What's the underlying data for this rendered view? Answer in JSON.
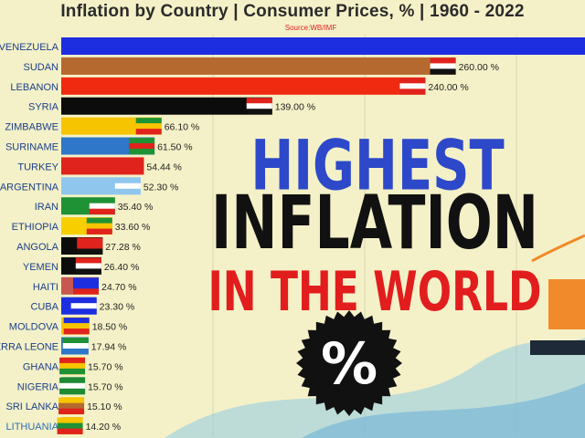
{
  "title": "Inflation by Country | Consumer Prices, % | 1960 - 2022",
  "source": "Source:WB/IMF",
  "overlay": {
    "line1": "HIGHEST",
    "line2": "INFLATION",
    "line3": "IN THE WORLD",
    "badge": "%"
  },
  "colors": {
    "background": "#f4f1c8",
    "highest": "#2d49c9",
    "world": "#e21d1d"
  },
  "chart_data": {
    "type": "bar",
    "orientation": "horizontal",
    "title": "Inflation by Country | Consumer Prices, % | 1960 - 2022",
    "xlabel": "",
    "ylabel": "",
    "grid": true,
    "categories": [
      "VENEZUELA",
      "SUDAN",
      "LEBANON",
      "SYRIA",
      "ZIMBABWE",
      "SURINAME",
      "TURKEY",
      "ARGENTINA",
      "IRAN",
      "ETHIOPIA",
      "ANGOLA",
      "YEMEN",
      "HAITI",
      "CUBA",
      "MOLDOVA",
      "SIERRA LEONE",
      "GHANA",
      "NIGERIA",
      "SRI LANKA",
      "LITHUANIA"
    ],
    "values": [
      386.2,
      260.0,
      240.0,
      139.0,
      66.1,
      61.5,
      54.44,
      52.3,
      35.4,
      33.6,
      27.28,
      26.4,
      24.7,
      23.3,
      18.5,
      17.94,
      15.7,
      15.7,
      15.1,
      14.2
    ],
    "value_labels": [
      "",
      "260.00 %",
      "240.00 %",
      "139.00 %",
      "66.10 %",
      "61.50 %",
      "54.44 %",
      "52.30 %",
      "35.40 %",
      "33.60 %",
      "27.28 %",
      "26.40 %",
      "24.70 %",
      "23.30 %",
      "18.50 %",
      "17.94 %",
      "15.70 %",
      "15.70 %",
      "15.10 %",
      "14.20 %"
    ],
    "bar_colors": [
      "#1d2ee0",
      "#b5692e",
      "#f02a10",
      "#0c0c0c",
      "#f6c400",
      "#2f77c8",
      "#e0231c",
      "#8fc6ee",
      "#1e9234",
      "#f7cf00",
      "#0c0c0c",
      "#0c0c0c",
      "#c8574f",
      "#1d2ee0",
      "#f6c400",
      "#2f77c8",
      "#f6c400",
      "#1e8a34",
      "#f7cf00",
      "#e8b800"
    ],
    "flag_colors": [
      [
        "#f6c400",
        "#1d2ee0",
        "#e0231c"
      ],
      [
        "#e0231c",
        "#ffffff",
        "#111111"
      ],
      [
        "#e0231c",
        "#ffffff",
        "#e0231c"
      ],
      [
        "#e0231c",
        "#ffffff",
        "#111111"
      ],
      [
        "#1e9234",
        "#f6c400",
        "#e0231c"
      ],
      [
        "#1e9234",
        "#e0231c",
        "#1e9234"
      ],
      [
        "#e0231c",
        "#e0231c",
        "#e0231c"
      ],
      [
        "#8fc6ee",
        "#ffffff",
        "#8fc6ee"
      ],
      [
        "#1e9234",
        "#ffffff",
        "#e0231c"
      ],
      [
        "#1e9234",
        "#f6c400",
        "#e0231c"
      ],
      [
        "#e0231c",
        "#e0231c",
        "#111111"
      ],
      [
        "#e0231c",
        "#ffffff",
        "#111111"
      ],
      [
        "#1d2ee0",
        "#1d2ee0",
        "#e0231c"
      ],
      [
        "#1d2ee0",
        "#ffffff",
        "#1d2ee0"
      ],
      [
        "#1d2ee0",
        "#f6c400",
        "#e0231c"
      ],
      [
        "#1e9234",
        "#ffffff",
        "#2f77c8"
      ],
      [
        "#e0231c",
        "#f6c400",
        "#1e9234"
      ],
      [
        "#1e8a34",
        "#ffffff",
        "#1e8a34"
      ],
      [
        "#f6c400",
        "#b5692e",
        "#e0231c"
      ],
      [
        "#f6c400",
        "#1e9234",
        "#e0231c"
      ]
    ]
  }
}
